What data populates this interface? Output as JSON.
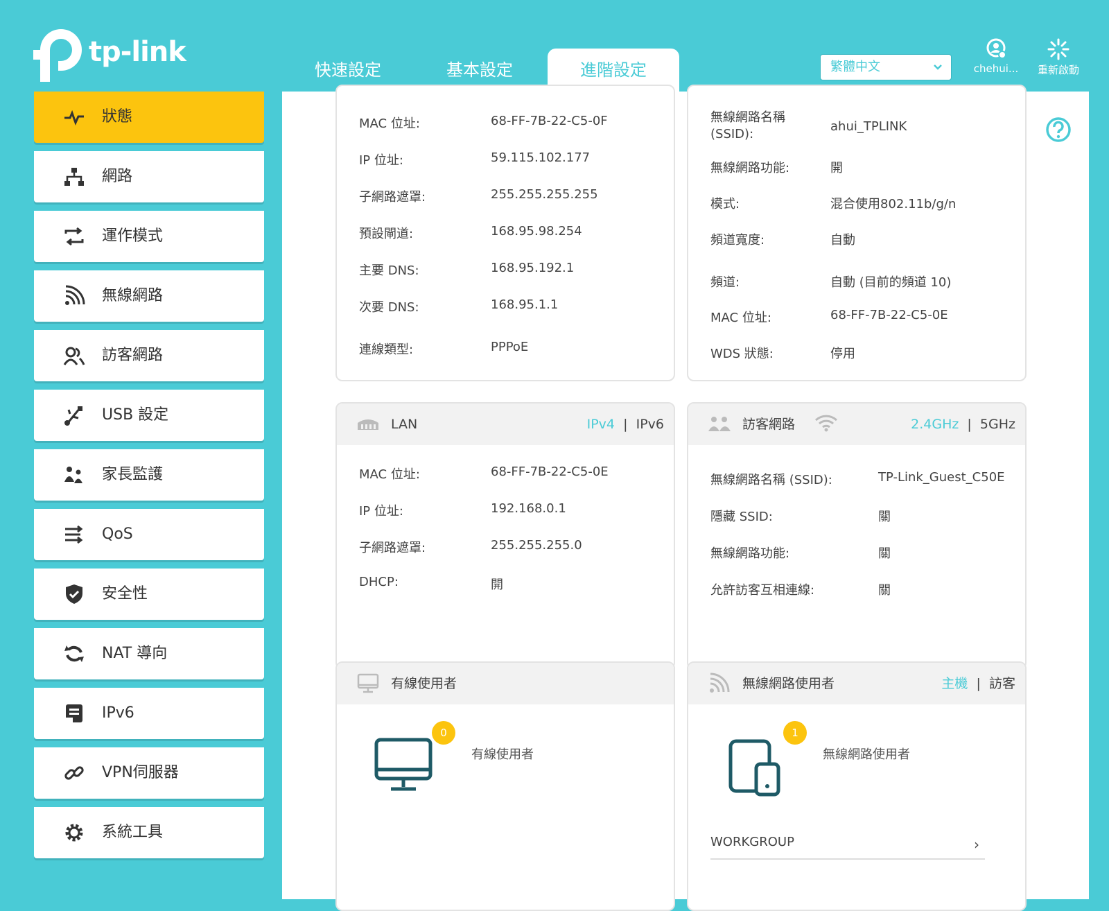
{
  "brand": {
    "name": "tp-link"
  },
  "tabs": [
    {
      "label": "快速設定",
      "active": false
    },
    {
      "label": "基本設定",
      "active": false
    },
    {
      "label": "進階設定",
      "active": true
    }
  ],
  "header": {
    "language": "繁體中文",
    "account_label": "chehui...",
    "reboot_label": "重新啟動"
  },
  "sidebar": {
    "items": [
      {
        "label": "狀態",
        "icon": "pulse-icon",
        "active": true
      },
      {
        "label": "網路",
        "icon": "network-icon",
        "active": false
      },
      {
        "label": "運作模式",
        "icon": "mode-icon",
        "active": false
      },
      {
        "label": "無線網路",
        "icon": "wifi-icon",
        "active": false
      },
      {
        "label": "訪客網路",
        "icon": "guest-icon",
        "active": false
      },
      {
        "label": "USB 設定",
        "icon": "usb-icon",
        "active": false
      },
      {
        "label": "家長監護",
        "icon": "parental-icon",
        "active": false
      },
      {
        "label": "QoS",
        "icon": "qos-icon",
        "active": false
      },
      {
        "label": "安全性",
        "icon": "shield-icon",
        "active": false
      },
      {
        "label": "NAT 導向",
        "icon": "nat-icon",
        "active": false
      },
      {
        "label": "IPv6",
        "icon": "ipv6-icon",
        "active": false
      },
      {
        "label": "VPN伺服器",
        "icon": "vpn-icon",
        "active": false
      },
      {
        "label": "系統工具",
        "icon": "gear-icon",
        "active": false
      }
    ]
  },
  "internet": {
    "rows": [
      {
        "label": "MAC 位址:",
        "value": "68-FF-7B-22-C5-0F"
      },
      {
        "label": "IP 位址:",
        "value": "59.115.102.177"
      },
      {
        "label": "子網路遮罩:",
        "value": "255.255.255.255"
      },
      {
        "label": "預設閘道:",
        "value": "168.95.98.254"
      },
      {
        "label": "主要 DNS:",
        "value": "168.95.192.1"
      },
      {
        "label": "次要 DNS:",
        "value": "168.95.1.1"
      },
      {
        "label": "連線類型:",
        "value": "PPPoE"
      }
    ]
  },
  "wireless": {
    "rows": [
      {
        "label": "無線網路名稱\n(SSID):",
        "value": "ahui_TPLINK"
      },
      {
        "label": "無線網路功能:",
        "value": "開"
      },
      {
        "label": "模式:",
        "value": "混合使用802.11b/g/n"
      },
      {
        "label": "頻道寬度:",
        "value": "自動"
      },
      {
        "label": "頻道:",
        "value": "自動 (目前的頻道 10)"
      },
      {
        "label": "MAC 位址:",
        "value": "68-FF-7B-22-C5-0E"
      },
      {
        "label": "WDS 狀態:",
        "value": "停用"
      }
    ]
  },
  "lan": {
    "title": "LAN",
    "switch_a": "IPv4",
    "switch_sep": "|",
    "switch_b": "IPv6",
    "rows": [
      {
        "label": "MAC 位址:",
        "value": "68-FF-7B-22-C5-0E"
      },
      {
        "label": "IP 位址:",
        "value": "192.168.0.1"
      },
      {
        "label": "子網路遮罩:",
        "value": "255.255.255.0"
      },
      {
        "label": "DHCP:",
        "value": "開"
      }
    ]
  },
  "guest": {
    "title": "訪客網路",
    "switch_a": "2.4GHz",
    "switch_sep": "|",
    "switch_b": "5GHz",
    "rows": [
      {
        "label": "無線網路名稱 (SSID):",
        "value": "TP-Link_Guest_C50E"
      },
      {
        "label": "隱藏 SSID:",
        "value": "關"
      },
      {
        "label": "無線網路功能:",
        "value": "關"
      },
      {
        "label": "允許訪客互相連線:",
        "value": "關"
      }
    ]
  },
  "wired_clients": {
    "title": "有線使用者",
    "count": "0",
    "label": "有線使用者"
  },
  "wireless_clients": {
    "title": "無線網路使用者",
    "switch_a": "主機",
    "switch_sep": "|",
    "switch_b": "訪客",
    "count": "1",
    "label": "無線網路使用者",
    "group": "WORKGROUP"
  },
  "colors": {
    "accent": "#4acbd6",
    "active_nav": "#fcc40e",
    "icon_dark": "#1e5a66"
  }
}
